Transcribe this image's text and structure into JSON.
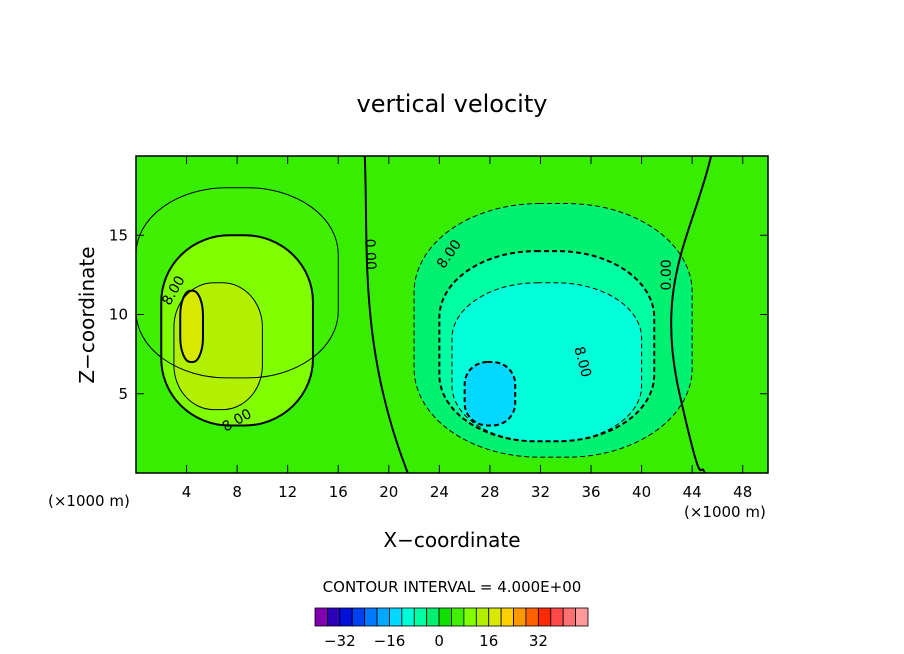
{
  "chart_data": {
    "type": "heatmap",
    "title": "vertical velocity",
    "xlabel": "X−coordinate",
    "ylabel": "Z−coordinate",
    "x_unit_left": "(×1000 m)",
    "x_unit_right": "(×1000 m)",
    "xlim": [
      0,
      50
    ],
    "ylim": [
      0,
      20
    ],
    "x_ticks": [
      4,
      8,
      12,
      16,
      20,
      24,
      28,
      32,
      36,
      40,
      44,
      48
    ],
    "y_ticks": [
      5,
      10,
      15
    ],
    "contour_interval_text": "CONTOUR INTERVAL =  4.000E+00",
    "contour_labels": [
      {
        "text": "8.00",
        "x": 3.0,
        "y": 11.5,
        "angle": -60
      },
      {
        "text": "8.00",
        "x": 8.0,
        "y": 3.3,
        "angle": -30
      },
      {
        "text": "0.00",
        "x": 18.5,
        "y": 13.8,
        "angle": 88
      },
      {
        "text": "8.00",
        "x": 24.8,
        "y": 13.8,
        "angle": -55
      },
      {
        "text": "8.00",
        "x": 35.3,
        "y": 7.0,
        "angle": 75
      },
      {
        "text": "0.00",
        "x": 42.0,
        "y": 12.5,
        "angle": -90
      }
    ],
    "colorbar": {
      "tick_labels": [
        "−32",
        "−16",
        "0",
        "16",
        "32"
      ],
      "tick_values": [
        -32,
        -16,
        0,
        16,
        32
      ],
      "colors": [
        "#8000b0",
        "#2a00b8",
        "#0010d8",
        "#0040f0",
        "#0078ff",
        "#00a8ff",
        "#00d8ff",
        "#00ffd8",
        "#00ffa0",
        "#00f070",
        "#10e000",
        "#40f000",
        "#80ff00",
        "#b0f000",
        "#d8e800",
        "#ffd000",
        "#ff9800",
        "#ff6000",
        "#ff2a00",
        "#ff4848",
        "#ff7070",
        "#ff9898"
      ]
    },
    "field_levels": {
      "background": 0,
      "cells": [
        {
          "level": 4,
          "x": 0,
          "y": 6,
          "w": 16,
          "h": 12
        },
        {
          "level": 8,
          "x": 2,
          "y": 3,
          "w": 12,
          "h": 12
        },
        {
          "level": 12,
          "x": 3,
          "y": 4,
          "w": 7,
          "h": 8
        },
        {
          "level": 16,
          "x": 3.5,
          "y": 7,
          "w": 1.8,
          "h": 4.5
        },
        {
          "level": -4,
          "x": 22,
          "y": 1,
          "w": 22,
          "h": 16
        },
        {
          "level": -8,
          "x": 24,
          "y": 2,
          "w": 17,
          "h": 12
        },
        {
          "level": -12,
          "x": 25,
          "y": 2,
          "w": 15,
          "h": 10
        },
        {
          "level": -16,
          "x": 26,
          "y": 3,
          "w": 4,
          "h": 4
        }
      ]
    }
  }
}
